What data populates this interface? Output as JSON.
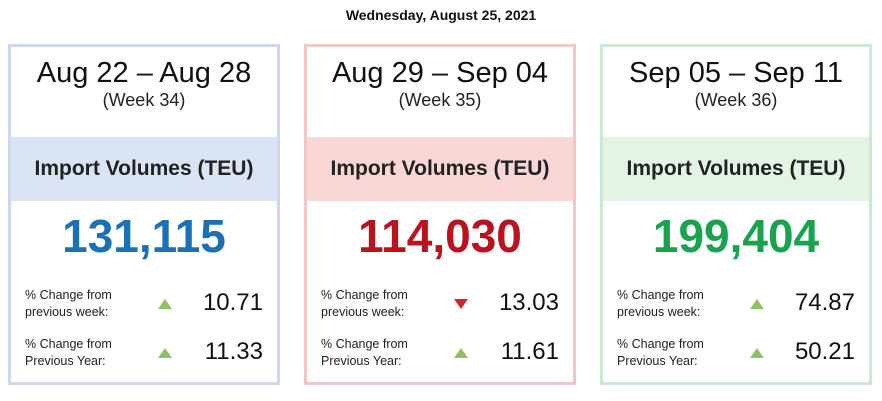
{
  "header": {
    "date": "Wednesday, August 25, 2021"
  },
  "cards": [
    {
      "range": "Aug 22 – Aug 28",
      "week": "(Week 34)",
      "heading": "Import Volumes (TEU)",
      "value": "131,115",
      "color": "#1c71b5",
      "border": "#cbd8ef",
      "band": "#dbe4f4",
      "changes": [
        {
          "label": "% Change from previous week:",
          "trend": "up",
          "value": "10.71"
        },
        {
          "label": "% Change from Previous Year:",
          "trend": "up",
          "value": "11.33"
        }
      ]
    },
    {
      "range": "Aug 29 – Sep 04",
      "week": "(Week 35)",
      "heading": "Import Volumes (TEU)",
      "value": "114,030",
      "color": "#b81420",
      "border": "#f1c6c6",
      "band": "#f9d7d7",
      "changes": [
        {
          "label": "% Change from previous week:",
          "trend": "down",
          "value": "13.03"
        },
        {
          "label": "% Change from Previous Year:",
          "trend": "up",
          "value": "11.61"
        }
      ]
    },
    {
      "range": "Sep 05 – Sep 11",
      "week": "(Week 36)",
      "heading": "Import Volumes (TEU)",
      "value": "199,404",
      "color": "#1ba24f",
      "border": "#c9e9d0",
      "band": "#e3f3e4",
      "changes": [
        {
          "label": "% Change from previous week:",
          "trend": "up",
          "value": "74.87"
        },
        {
          "label": "% Change from Previous Year:",
          "trend": "up",
          "value": "50.21"
        }
      ]
    }
  ]
}
